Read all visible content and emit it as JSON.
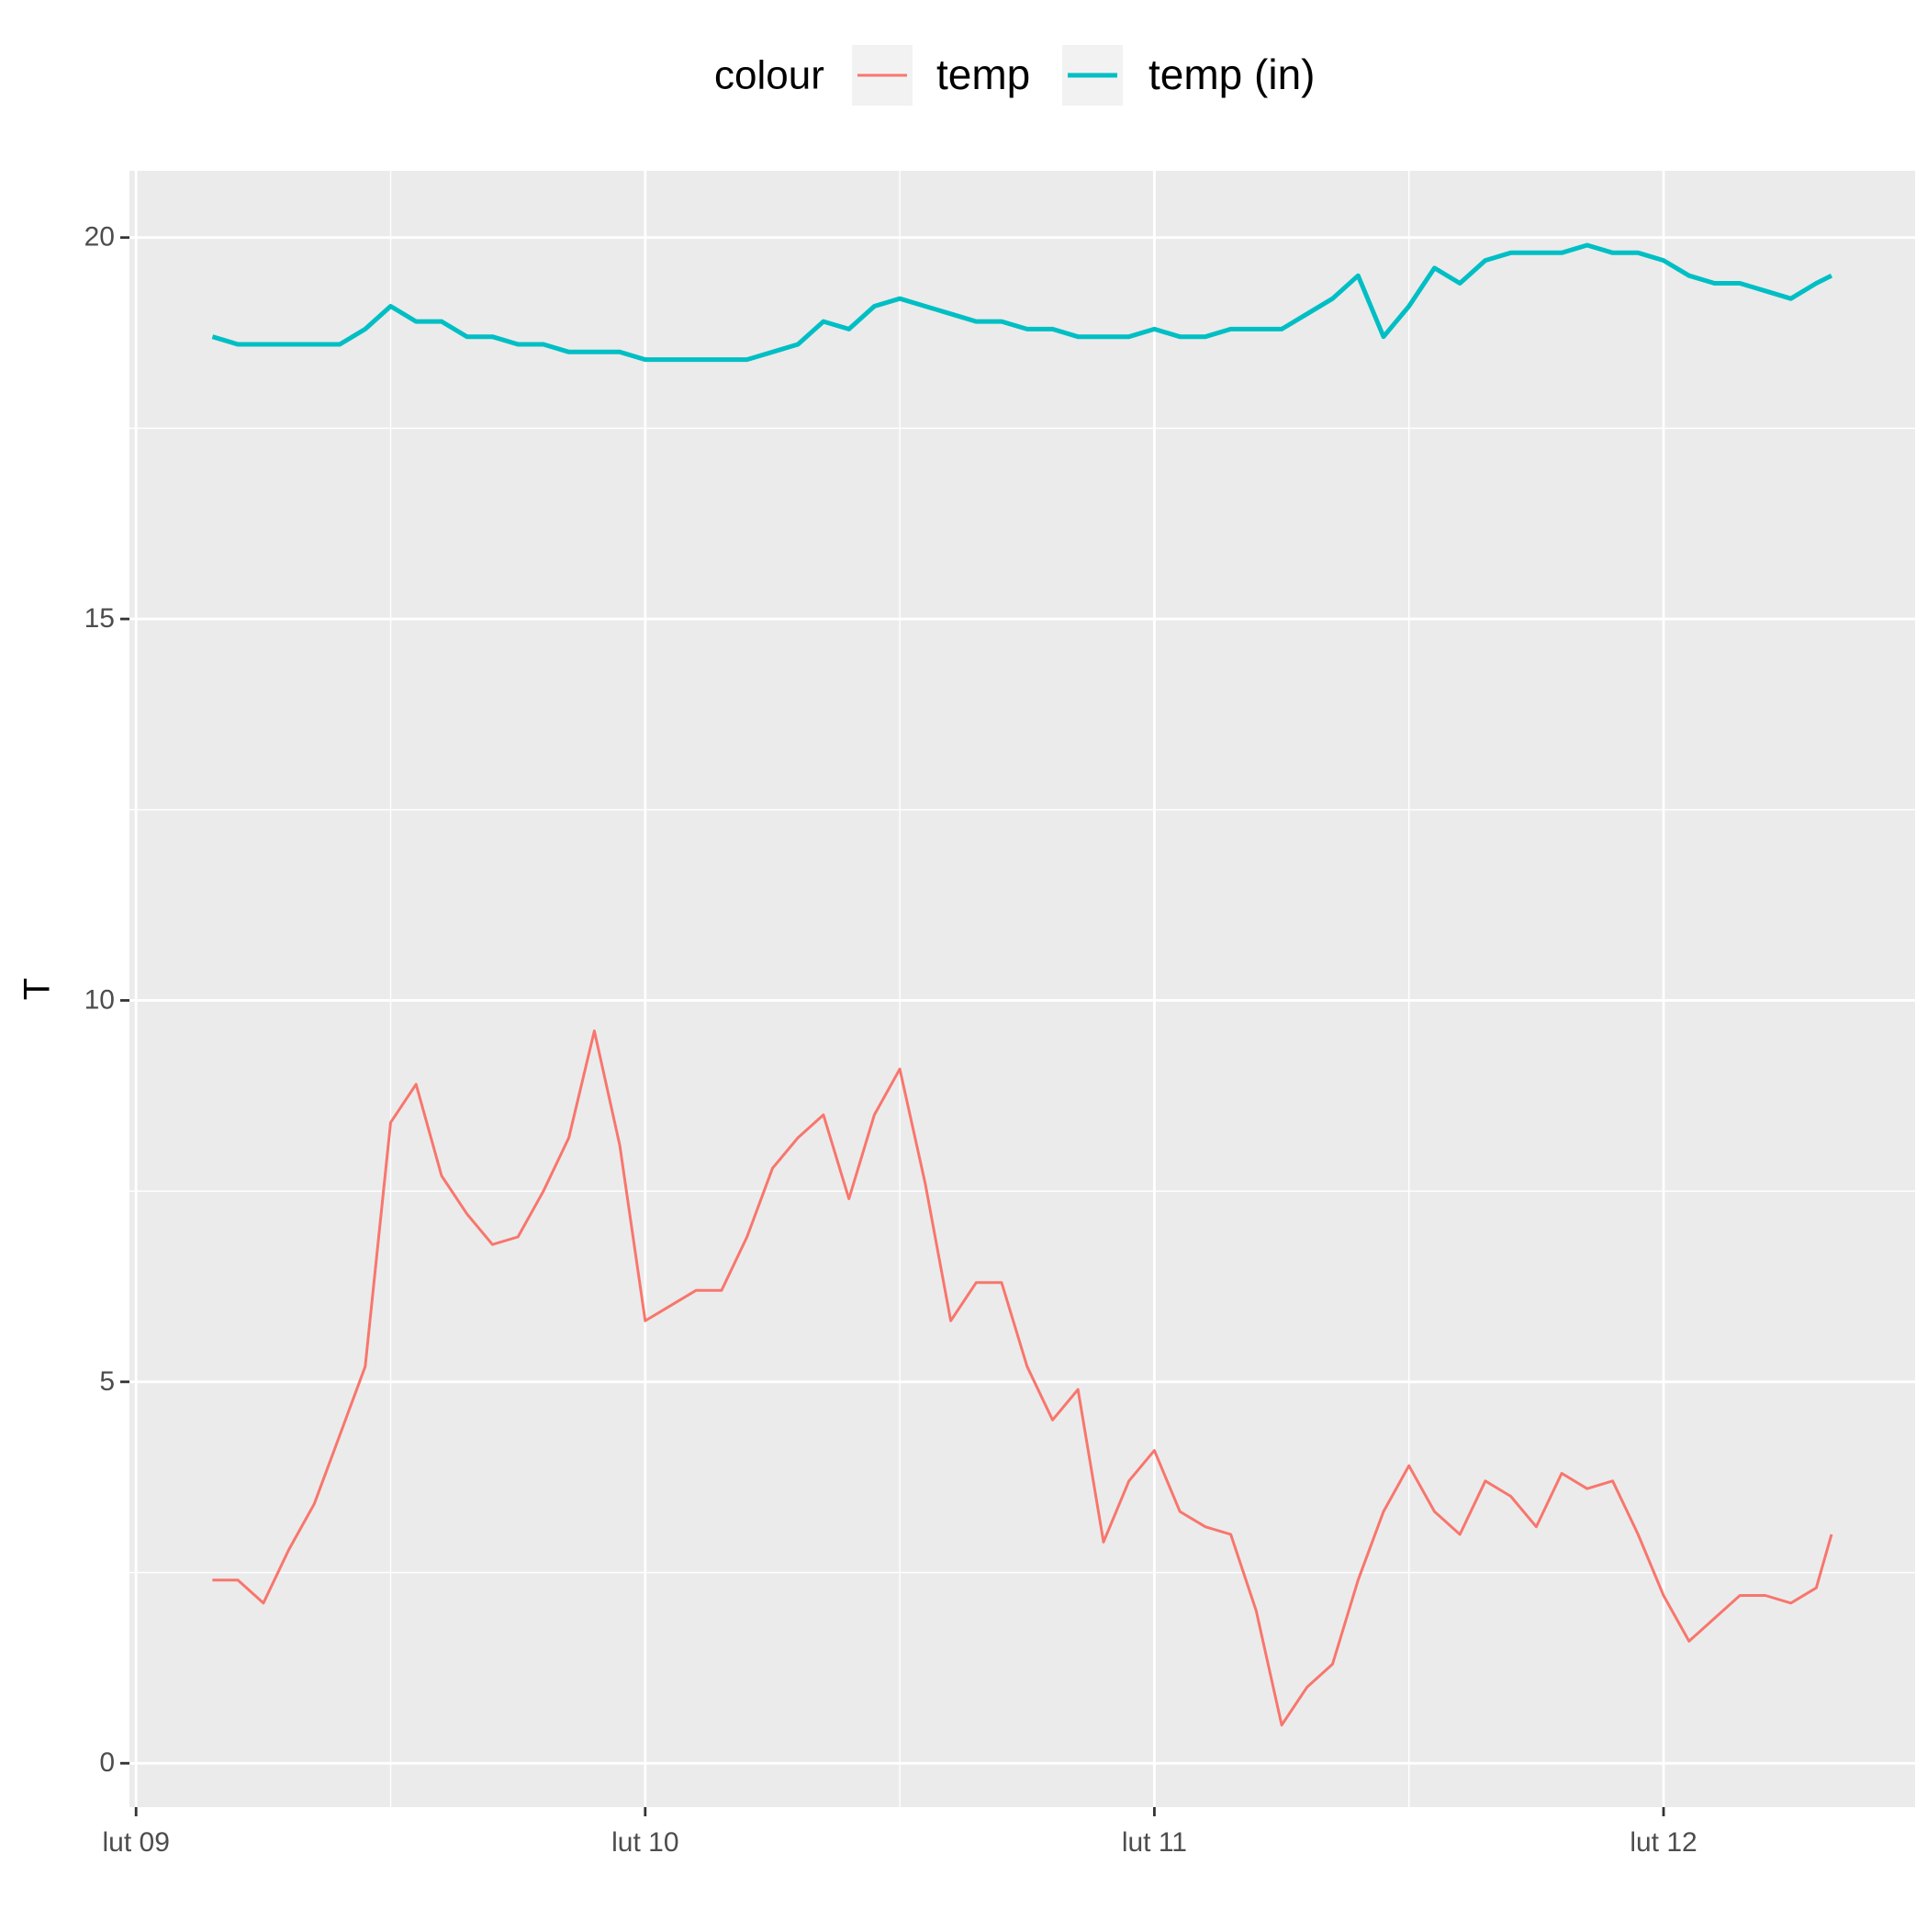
{
  "chart_data": {
    "type": "line",
    "ylabel": "T",
    "legend_title": "colour",
    "legend_position": "top",
    "grid": true,
    "x": [
      0.15,
      0.2,
      0.25,
      0.3,
      0.35,
      0.4,
      0.45,
      0.5,
      0.55,
      0.6,
      0.65,
      0.7,
      0.75,
      0.8,
      0.85,
      0.9,
      0.95,
      1.0,
      1.05,
      1.1,
      1.15,
      1.2,
      1.25,
      1.3,
      1.35,
      1.4,
      1.45,
      1.5,
      1.55,
      1.6,
      1.65,
      1.7,
      1.75,
      1.8,
      1.85,
      1.9,
      1.95,
      2.0,
      2.05,
      2.1,
      2.15,
      2.2,
      2.25,
      2.3,
      2.35,
      2.4,
      2.45,
      2.5,
      2.55,
      2.6,
      2.65,
      2.7,
      2.75,
      2.8,
      2.85,
      2.9,
      2.95,
      3.0,
      3.05,
      3.1,
      3.15,
      3.2,
      3.25,
      3.3,
      3.33
    ],
    "series": [
      {
        "name": "temp",
        "color": "#F8766D",
        "linewidth": 3,
        "values": [
          2.4,
          2.4,
          2.1,
          2.8,
          3.4,
          4.3,
          5.2,
          8.4,
          8.9,
          7.7,
          7.2,
          6.8,
          6.9,
          7.5,
          8.2,
          9.6,
          8.1,
          5.8,
          6.0,
          6.2,
          6.2,
          6.9,
          7.8,
          8.2,
          8.5,
          7.4,
          8.5,
          9.1,
          7.6,
          5.8,
          6.3,
          6.3,
          5.2,
          4.5,
          4.9,
          2.9,
          3.7,
          4.1,
          3.3,
          3.1,
          3.0,
          2.0,
          0.5,
          1.0,
          1.3,
          2.4,
          3.3,
          3.9,
          3.3,
          3.0,
          3.7,
          3.5,
          3.1,
          3.8,
          3.6,
          3.7,
          3.0,
          2.2,
          1.6,
          1.9,
          2.2,
          2.2,
          2.1,
          2.3,
          3.0
        ]
      },
      {
        "name": "temp (in)",
        "color": "#00BFC4",
        "linewidth": 5,
        "values": [
          18.7,
          18.6,
          18.6,
          18.6,
          18.6,
          18.6,
          18.8,
          19.1,
          18.9,
          18.9,
          18.7,
          18.7,
          18.6,
          18.6,
          18.5,
          18.5,
          18.5,
          18.4,
          18.4,
          18.4,
          18.4,
          18.4,
          18.5,
          18.6,
          18.9,
          18.8,
          19.1,
          19.2,
          19.1,
          19.0,
          18.9,
          18.9,
          18.8,
          18.8,
          18.7,
          18.7,
          18.7,
          18.8,
          18.7,
          18.7,
          18.8,
          18.8,
          18.8,
          19.0,
          19.2,
          19.5,
          18.7,
          19.1,
          19.6,
          19.4,
          19.7,
          19.8,
          19.8,
          19.8,
          19.9,
          19.8,
          19.8,
          19.7,
          19.5,
          19.4,
          19.4,
          19.3,
          19.2,
          19.4,
          19.5
        ]
      }
    ],
    "xlim": [
      -0.013,
      3.494
    ],
    "xticks": [
      {
        "value": 0,
        "label": "lut 09"
      },
      {
        "value": 1,
        "label": "lut 10"
      },
      {
        "value": 2,
        "label": "lut 11"
      },
      {
        "value": 3,
        "label": "lut 12"
      }
    ],
    "xminor": [
      0.5,
      1.5,
      2.5,
      3.5
    ],
    "ylim": [
      -0.575,
      20.875
    ],
    "yticks": [
      0,
      5,
      10,
      15,
      20
    ],
    "yminor": [
      2.5,
      7.5,
      12.5,
      17.5
    ]
  }
}
